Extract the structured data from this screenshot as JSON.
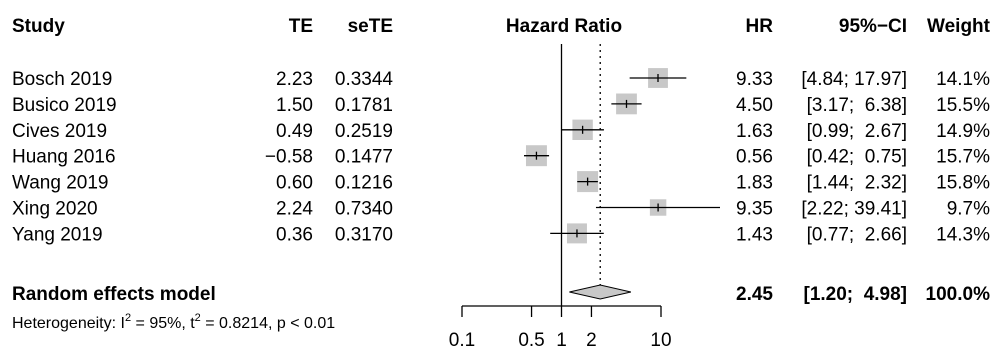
{
  "chart_data": {
    "type": "forest",
    "headers": {
      "study": "Study",
      "te": "TE",
      "sete": "seTE",
      "plot": "Hazard Ratio",
      "hr": "HR",
      "ci": "95%−CI",
      "weight": "Weight"
    },
    "studies": [
      {
        "study": "Bosch 2019",
        "te": "2.23",
        "sete": "0.3344",
        "hr_label": "9.33",
        "ci_label": "[4.84; 17.97]",
        "weight_label": "14.1%",
        "hr": 9.33,
        "lower": 4.84,
        "upper": 17.97,
        "weight": 14.1
      },
      {
        "study": "Busico 2019",
        "te": "1.50",
        "sete": "0.1781",
        "hr_label": "4.50",
        "ci_label": "[3.17;  6.38]",
        "weight_label": "15.5%",
        "hr": 4.5,
        "lower": 3.17,
        "upper": 6.38,
        "weight": 15.5
      },
      {
        "study": "Cives 2019",
        "te": "0.49",
        "sete": "0.2519",
        "hr_label": "1.63",
        "ci_label": "[0.99;  2.67]",
        "weight_label": "14.9%",
        "hr": 1.63,
        "lower": 0.99,
        "upper": 2.67,
        "weight": 14.9
      },
      {
        "study": "Huang 2016",
        "te": "−0.58",
        "sete": "0.1477",
        "hr_label": "0.56",
        "ci_label": "[0.42;  0.75]",
        "weight_label": "15.7%",
        "hr": 0.56,
        "lower": 0.42,
        "upper": 0.75,
        "weight": 15.7
      },
      {
        "study": "Wang 2019",
        "te": "0.60",
        "sete": "0.1216",
        "hr_label": "1.83",
        "ci_label": "[1.44;  2.32]",
        "weight_label": "15.8%",
        "hr": 1.83,
        "lower": 1.44,
        "upper": 2.32,
        "weight": 15.8
      },
      {
        "study": "Xing 2020",
        "te": "2.24",
        "sete": "0.7340",
        "hr_label": "9.35",
        "ci_label": "[2.22; 39.41]",
        "weight_label": "9.7%",
        "hr": 9.35,
        "lower": 2.22,
        "upper": 39.41,
        "weight": 9.7
      },
      {
        "study": "Yang 2019",
        "te": "0.36",
        "sete": "0.3170",
        "hr_label": "1.43",
        "ci_label": "[0.77;  2.66]",
        "weight_label": "14.3%",
        "hr": 1.43,
        "lower": 0.77,
        "upper": 2.66,
        "weight": 14.3
      }
    ],
    "pooled": {
      "label": "Random effects model",
      "hr_label": "2.45",
      "ci_label": "[1.20;  4.98]",
      "weight_label": "100.0%",
      "hr": 2.45,
      "lower": 1.2,
      "upper": 4.98
    },
    "heterogeneity": {
      "prefix": "Heterogeneity: I",
      "i2_sup": "2",
      "i2_value": " = 95%, t",
      "tau2_sup": "2",
      "tau2_value": " = 0.8214, p < 0.01"
    },
    "x_axis": {
      "scale": "log",
      "ticks": [
        0.1,
        0.5,
        1,
        2,
        10
      ],
      "tick_labels": [
        "0.1",
        "0.5",
        "1",
        "2",
        "10"
      ],
      "range": [
        0.1,
        10
      ],
      "null_line": 1,
      "pooled_reference_line": 2.45
    },
    "colors": {
      "square": "#c8c8c8",
      "diamond": "#c8c8c8",
      "line": "#000000"
    }
  }
}
